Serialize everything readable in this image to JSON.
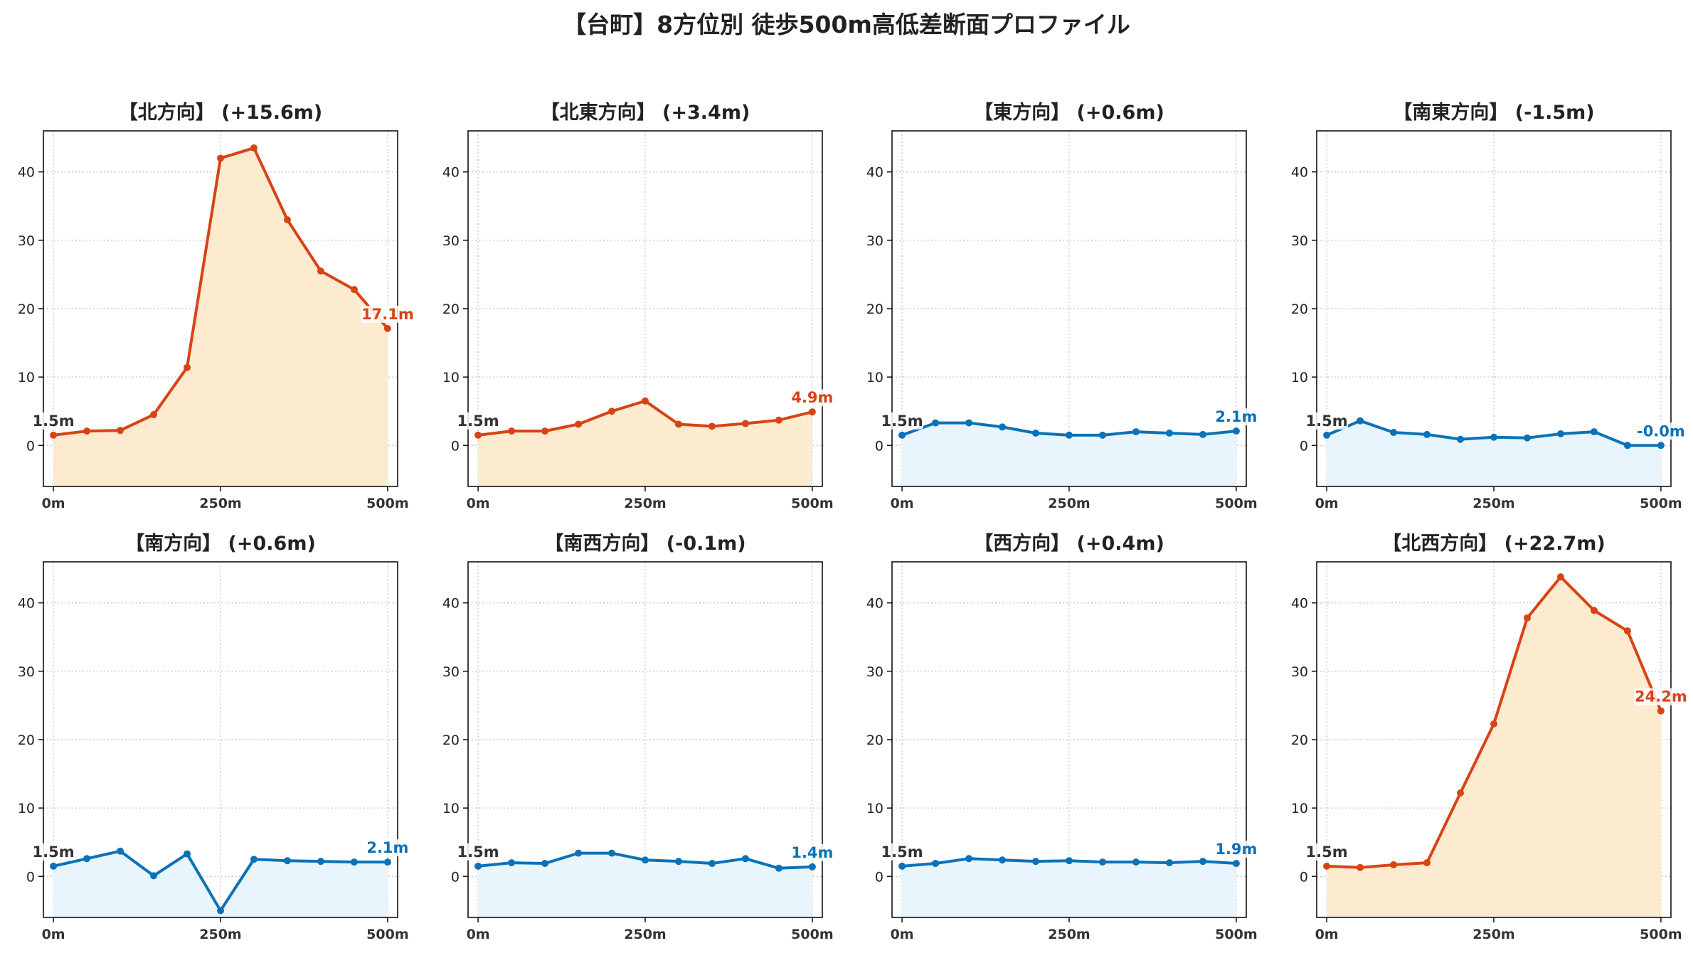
{
  "title": "【台町】8方位別 徒歩500m高低差断面プロファイル",
  "colors": {
    "up_line": "#d84315",
    "up_fill": "#fdebd0",
    "down_line": "#0a72b8",
    "down_fill": "#e8f5fc",
    "start_label": "#333333",
    "grid": "#c8c8c8"
  },
  "chart_data": [
    {
      "type": "area",
      "title": "【北方向】 (+15.6m)",
      "trend": "up",
      "x": [
        0,
        50,
        100,
        150,
        200,
        250,
        300,
        350,
        400,
        450,
        500
      ],
      "y": [
        1.5,
        2.1,
        2.2,
        4.5,
        11.4,
        42.0,
        43.5,
        33.0,
        25.5,
        22.8,
        17.1
      ],
      "start_label": "1.5m",
      "end_label": "17.1m",
      "xticks": [
        "0m",
        "250m",
        "500m"
      ],
      "yticks": [
        "0",
        "10",
        "20",
        "30",
        "40"
      ],
      "xlim": [
        -15,
        515
      ],
      "ylim": [
        -6,
        46
      ],
      "grid": true
    },
    {
      "type": "area",
      "title": "【北東方向】 (+3.4m)",
      "trend": "up",
      "x": [
        0,
        50,
        100,
        150,
        200,
        250,
        300,
        350,
        400,
        450,
        500
      ],
      "y": [
        1.5,
        2.1,
        2.1,
        3.1,
        5.0,
        6.5,
        3.1,
        2.8,
        3.2,
        3.7,
        4.9
      ],
      "start_label": "1.5m",
      "end_label": "4.9m",
      "xticks": [
        "0m",
        "250m",
        "500m"
      ],
      "yticks": [
        "0",
        "10",
        "20",
        "30",
        "40"
      ],
      "xlim": [
        -15,
        515
      ],
      "ylim": [
        -6,
        46
      ],
      "grid": true
    },
    {
      "type": "area",
      "title": "【東方向】 (+0.6m)",
      "trend": "down",
      "x": [
        0,
        50,
        100,
        150,
        200,
        250,
        300,
        350,
        400,
        450,
        500
      ],
      "y": [
        1.5,
        3.3,
        3.3,
        2.7,
        1.8,
        1.5,
        1.5,
        2.0,
        1.8,
        1.6,
        2.1
      ],
      "start_label": "1.5m",
      "end_label": "2.1m",
      "xticks": [
        "0m",
        "250m",
        "500m"
      ],
      "yticks": [
        "0",
        "10",
        "20",
        "30",
        "40"
      ],
      "xlim": [
        -15,
        515
      ],
      "ylim": [
        -6,
        46
      ],
      "grid": true
    },
    {
      "type": "area",
      "title": "【南東方向】 (-1.5m)",
      "trend": "down",
      "x": [
        0,
        50,
        100,
        150,
        200,
        250,
        300,
        350,
        400,
        450,
        500
      ],
      "y": [
        1.5,
        3.6,
        1.9,
        1.6,
        0.9,
        1.2,
        1.1,
        1.7,
        2.0,
        0.0,
        0.0
      ],
      "start_label": "1.5m",
      "end_label": "-0.0m",
      "xticks": [
        "0m",
        "250m",
        "500m"
      ],
      "yticks": [
        "0",
        "10",
        "20",
        "30",
        "40"
      ],
      "xlim": [
        -15,
        515
      ],
      "ylim": [
        -6,
        46
      ],
      "grid": true
    },
    {
      "type": "area",
      "title": "【南方向】 (+0.6m)",
      "trend": "down",
      "x": [
        0,
        50,
        100,
        150,
        200,
        250,
        300,
        350,
        400,
        450,
        500
      ],
      "y": [
        1.5,
        2.6,
        3.7,
        0.1,
        3.3,
        -5.0,
        2.5,
        2.3,
        2.2,
        2.1,
        2.1
      ],
      "start_label": "1.5m",
      "end_label": "2.1m",
      "xticks": [
        "0m",
        "250m",
        "500m"
      ],
      "yticks": [
        "0",
        "10",
        "20",
        "30",
        "40"
      ],
      "xlim": [
        -15,
        515
      ],
      "ylim": [
        -6,
        46
      ],
      "grid": true
    },
    {
      "type": "area",
      "title": "【南西方向】 (-0.1m)",
      "trend": "down",
      "x": [
        0,
        50,
        100,
        150,
        200,
        250,
        300,
        350,
        400,
        450,
        500
      ],
      "y": [
        1.5,
        2.0,
        1.9,
        3.4,
        3.4,
        2.4,
        2.2,
        1.9,
        2.6,
        1.2,
        1.4
      ],
      "start_label": "1.5m",
      "end_label": "1.4m",
      "xticks": [
        "0m",
        "250m",
        "500m"
      ],
      "yticks": [
        "0",
        "10",
        "20",
        "30",
        "40"
      ],
      "xlim": [
        -15,
        515
      ],
      "ylim": [
        -6,
        46
      ],
      "grid": true
    },
    {
      "type": "area",
      "title": "【西方向】 (+0.4m)",
      "trend": "down",
      "x": [
        0,
        50,
        100,
        150,
        200,
        250,
        300,
        350,
        400,
        450,
        500
      ],
      "y": [
        1.5,
        1.9,
        2.6,
        2.4,
        2.2,
        2.3,
        2.1,
        2.1,
        2.0,
        2.2,
        1.9
      ],
      "start_label": "1.5m",
      "end_label": "1.9m",
      "xticks": [
        "0m",
        "250m",
        "500m"
      ],
      "yticks": [
        "0",
        "10",
        "20",
        "30",
        "40"
      ],
      "xlim": [
        -15,
        515
      ],
      "ylim": [
        -6,
        46
      ],
      "grid": true
    },
    {
      "type": "area",
      "title": "【北西方向】 (+22.7m)",
      "trend": "up",
      "x": [
        0,
        50,
        100,
        150,
        200,
        250,
        300,
        350,
        400,
        450,
        500
      ],
      "y": [
        1.5,
        1.3,
        1.7,
        2.0,
        12.2,
        22.3,
        37.8,
        43.8,
        38.9,
        35.9,
        24.2
      ],
      "start_label": "1.5m",
      "end_label": "24.2m",
      "xticks": [
        "0m",
        "250m",
        "500m"
      ],
      "yticks": [
        "0",
        "10",
        "20",
        "30",
        "40"
      ],
      "xlim": [
        -15,
        515
      ],
      "ylim": [
        -6,
        46
      ],
      "grid": true
    }
  ]
}
